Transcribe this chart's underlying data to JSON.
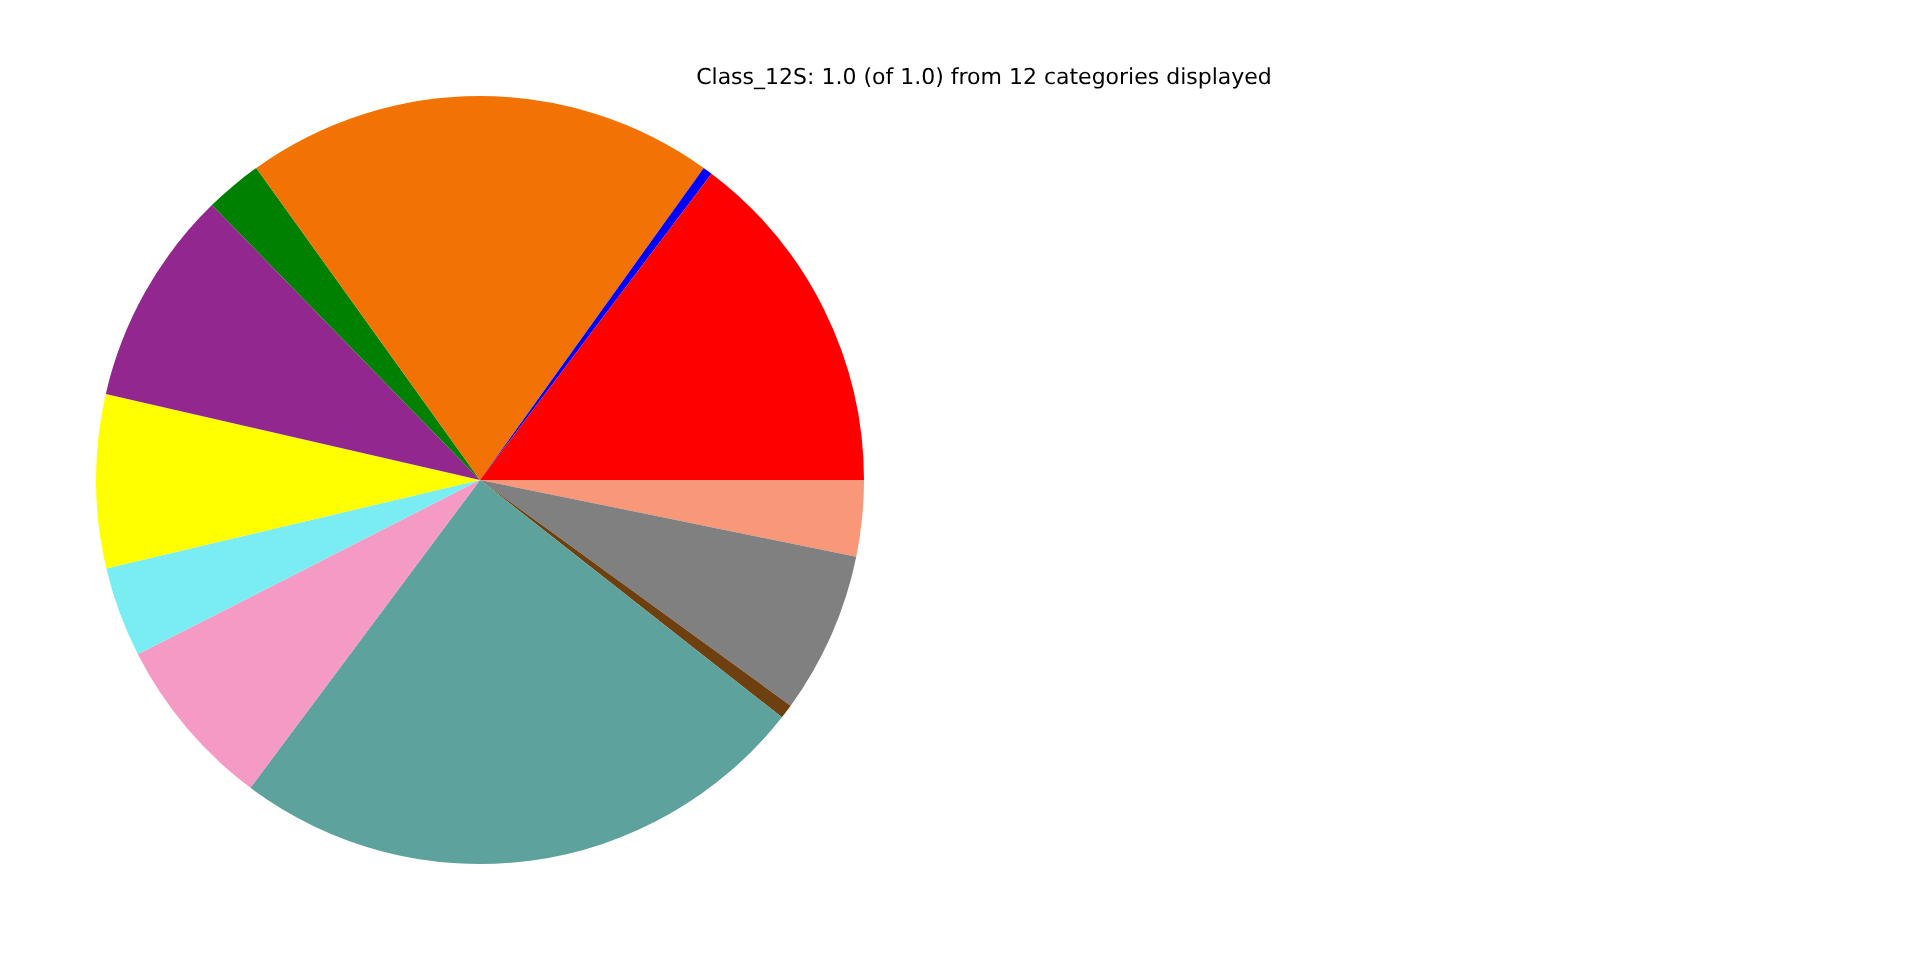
{
  "chart_data": {
    "type": "pie",
    "title": "Class_12S: 1.0 (of 1.0) from 12 categories displayed",
    "categories": [
      null,
      null,
      null,
      null,
      null,
      null,
      null,
      null,
      null,
      null,
      null,
      null
    ],
    "values": [
      14.7,
      0.4,
      19.8,
      2.4,
      9.1,
      7.3,
      3.8,
      7.3,
      24.6,
      0.6,
      6.8,
      3.2
    ],
    "colors": [
      "#ff0000",
      "#0000ff",
      "#f27304",
      "#008000",
      "#91278f",
      "#ffff00",
      "#7aedf2",
      "#f49ac5",
      "#5ea29e",
      "#6e3f0f",
      "#808080",
      "#f89878"
    ],
    "legend": false
  }
}
